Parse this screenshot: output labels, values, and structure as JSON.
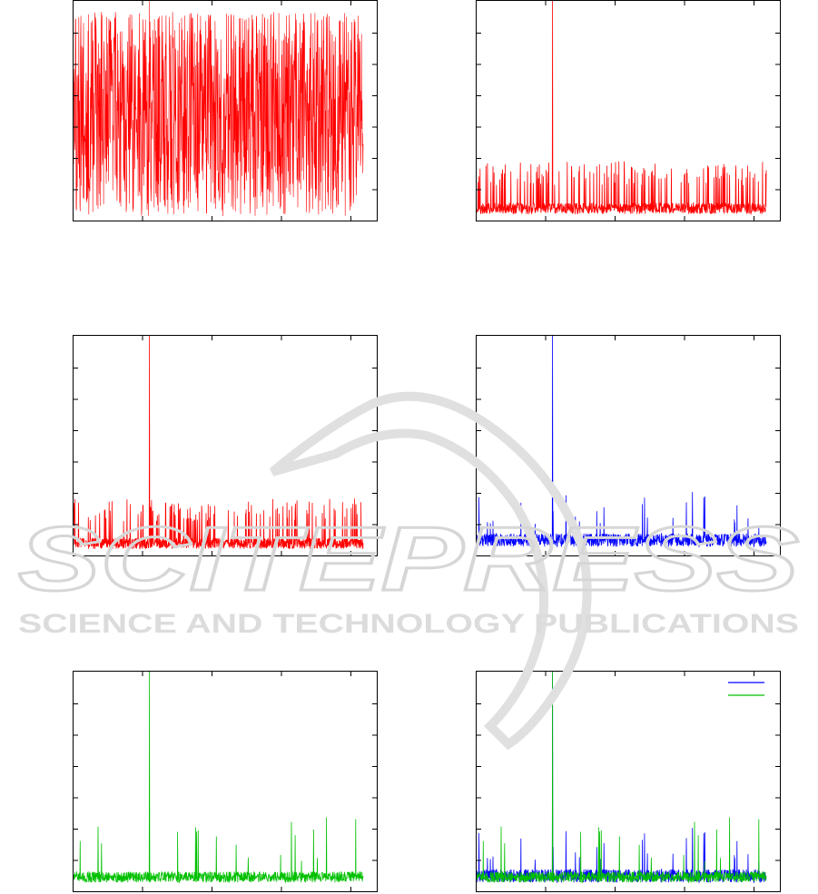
{
  "watermark": {
    "title": "SCITEPRESS",
    "subtitle": "SCIENCE AND TECHNOLOGY PUBLICATIONS"
  },
  "chart_data": [
    {
      "type": "line",
      "colors": [
        "#ff0000"
      ],
      "series": [
        {
          "color": "#ff0000",
          "baseline": 0.03,
          "noise": 0.7,
          "dense": true,
          "spike_at": 0.25,
          "spike_height": 1.0,
          "seed": 11
        }
      ],
      "xlim": [
        0,
        1
      ],
      "ylim": [
        0,
        1
      ],
      "x_ticks": 4,
      "y_ticks": 6,
      "legend": null
    },
    {
      "type": "line",
      "colors": [
        "#ff0000"
      ],
      "series": [
        {
          "color": "#ff0000",
          "baseline": 0.03,
          "noise": 0.05,
          "burst_level": 0.27,
          "burst_rate": 0.12,
          "spike_at": 0.25,
          "spike_height": 1.0,
          "seed": 21
        }
      ],
      "xlim": [
        0,
        1
      ],
      "ylim": [
        0,
        1
      ],
      "x_ticks": 4,
      "y_ticks": 6,
      "legend": null
    },
    {
      "type": "line",
      "colors": [
        "#ff0000"
      ],
      "series": [
        {
          "color": "#ff0000",
          "baseline": 0.03,
          "noise": 0.05,
          "burst_level": 0.26,
          "burst_rate": 0.1,
          "spike_at": 0.25,
          "spike_height": 1.0,
          "seed": 31
        }
      ],
      "xlim": [
        0,
        1
      ],
      "ylim": [
        0,
        1
      ],
      "x_ticks": 4,
      "y_ticks": 6,
      "legend": null
    },
    {
      "type": "line",
      "colors": [
        "#0000ff"
      ],
      "series": [
        {
          "color": "#0000ff",
          "baseline": 0.04,
          "noise": 0.06,
          "peak_rate": 0.02,
          "peak_height": 0.25,
          "spike_at": 0.25,
          "spike_height": 1.0,
          "seed": 41
        }
      ],
      "xlim": [
        0,
        1
      ],
      "ylim": [
        0,
        1
      ],
      "x_ticks": 4,
      "y_ticks": 6,
      "legend": null
    },
    {
      "type": "line",
      "colors": [
        "#00c000"
      ],
      "series": [
        {
          "color": "#00c000",
          "baseline": 0.04,
          "noise": 0.05,
          "peak_rate": 0.015,
          "peak_height": 0.3,
          "spike_at": 0.25,
          "spike_height": 1.0,
          "seed": 51
        }
      ],
      "xlim": [
        0,
        1
      ],
      "ylim": [
        0,
        1
      ],
      "x_ticks": 4,
      "y_ticks": 6,
      "legend": null
    },
    {
      "type": "line",
      "colors": [
        "#0000ff",
        "#00c000"
      ],
      "series": [
        {
          "color": "#0000ff",
          "baseline": 0.04,
          "noise": 0.06,
          "peak_rate": 0.02,
          "peak_height": 0.25,
          "spike_at": 0.25,
          "spike_height": 1.0,
          "seed": 41
        },
        {
          "color": "#00c000",
          "baseline": 0.04,
          "noise": 0.05,
          "peak_rate": 0.015,
          "peak_height": 0.3,
          "spike_at": 0.25,
          "spike_height": 1.0,
          "seed": 51
        }
      ],
      "xlim": [
        0,
        1
      ],
      "ylim": [
        0,
        1
      ],
      "x_ticks": 4,
      "y_ticks": 6,
      "legend": {
        "position": "top-right",
        "entries": [
          {
            "color": "#0000ff"
          },
          {
            "color": "#00c000"
          }
        ]
      }
    }
  ]
}
